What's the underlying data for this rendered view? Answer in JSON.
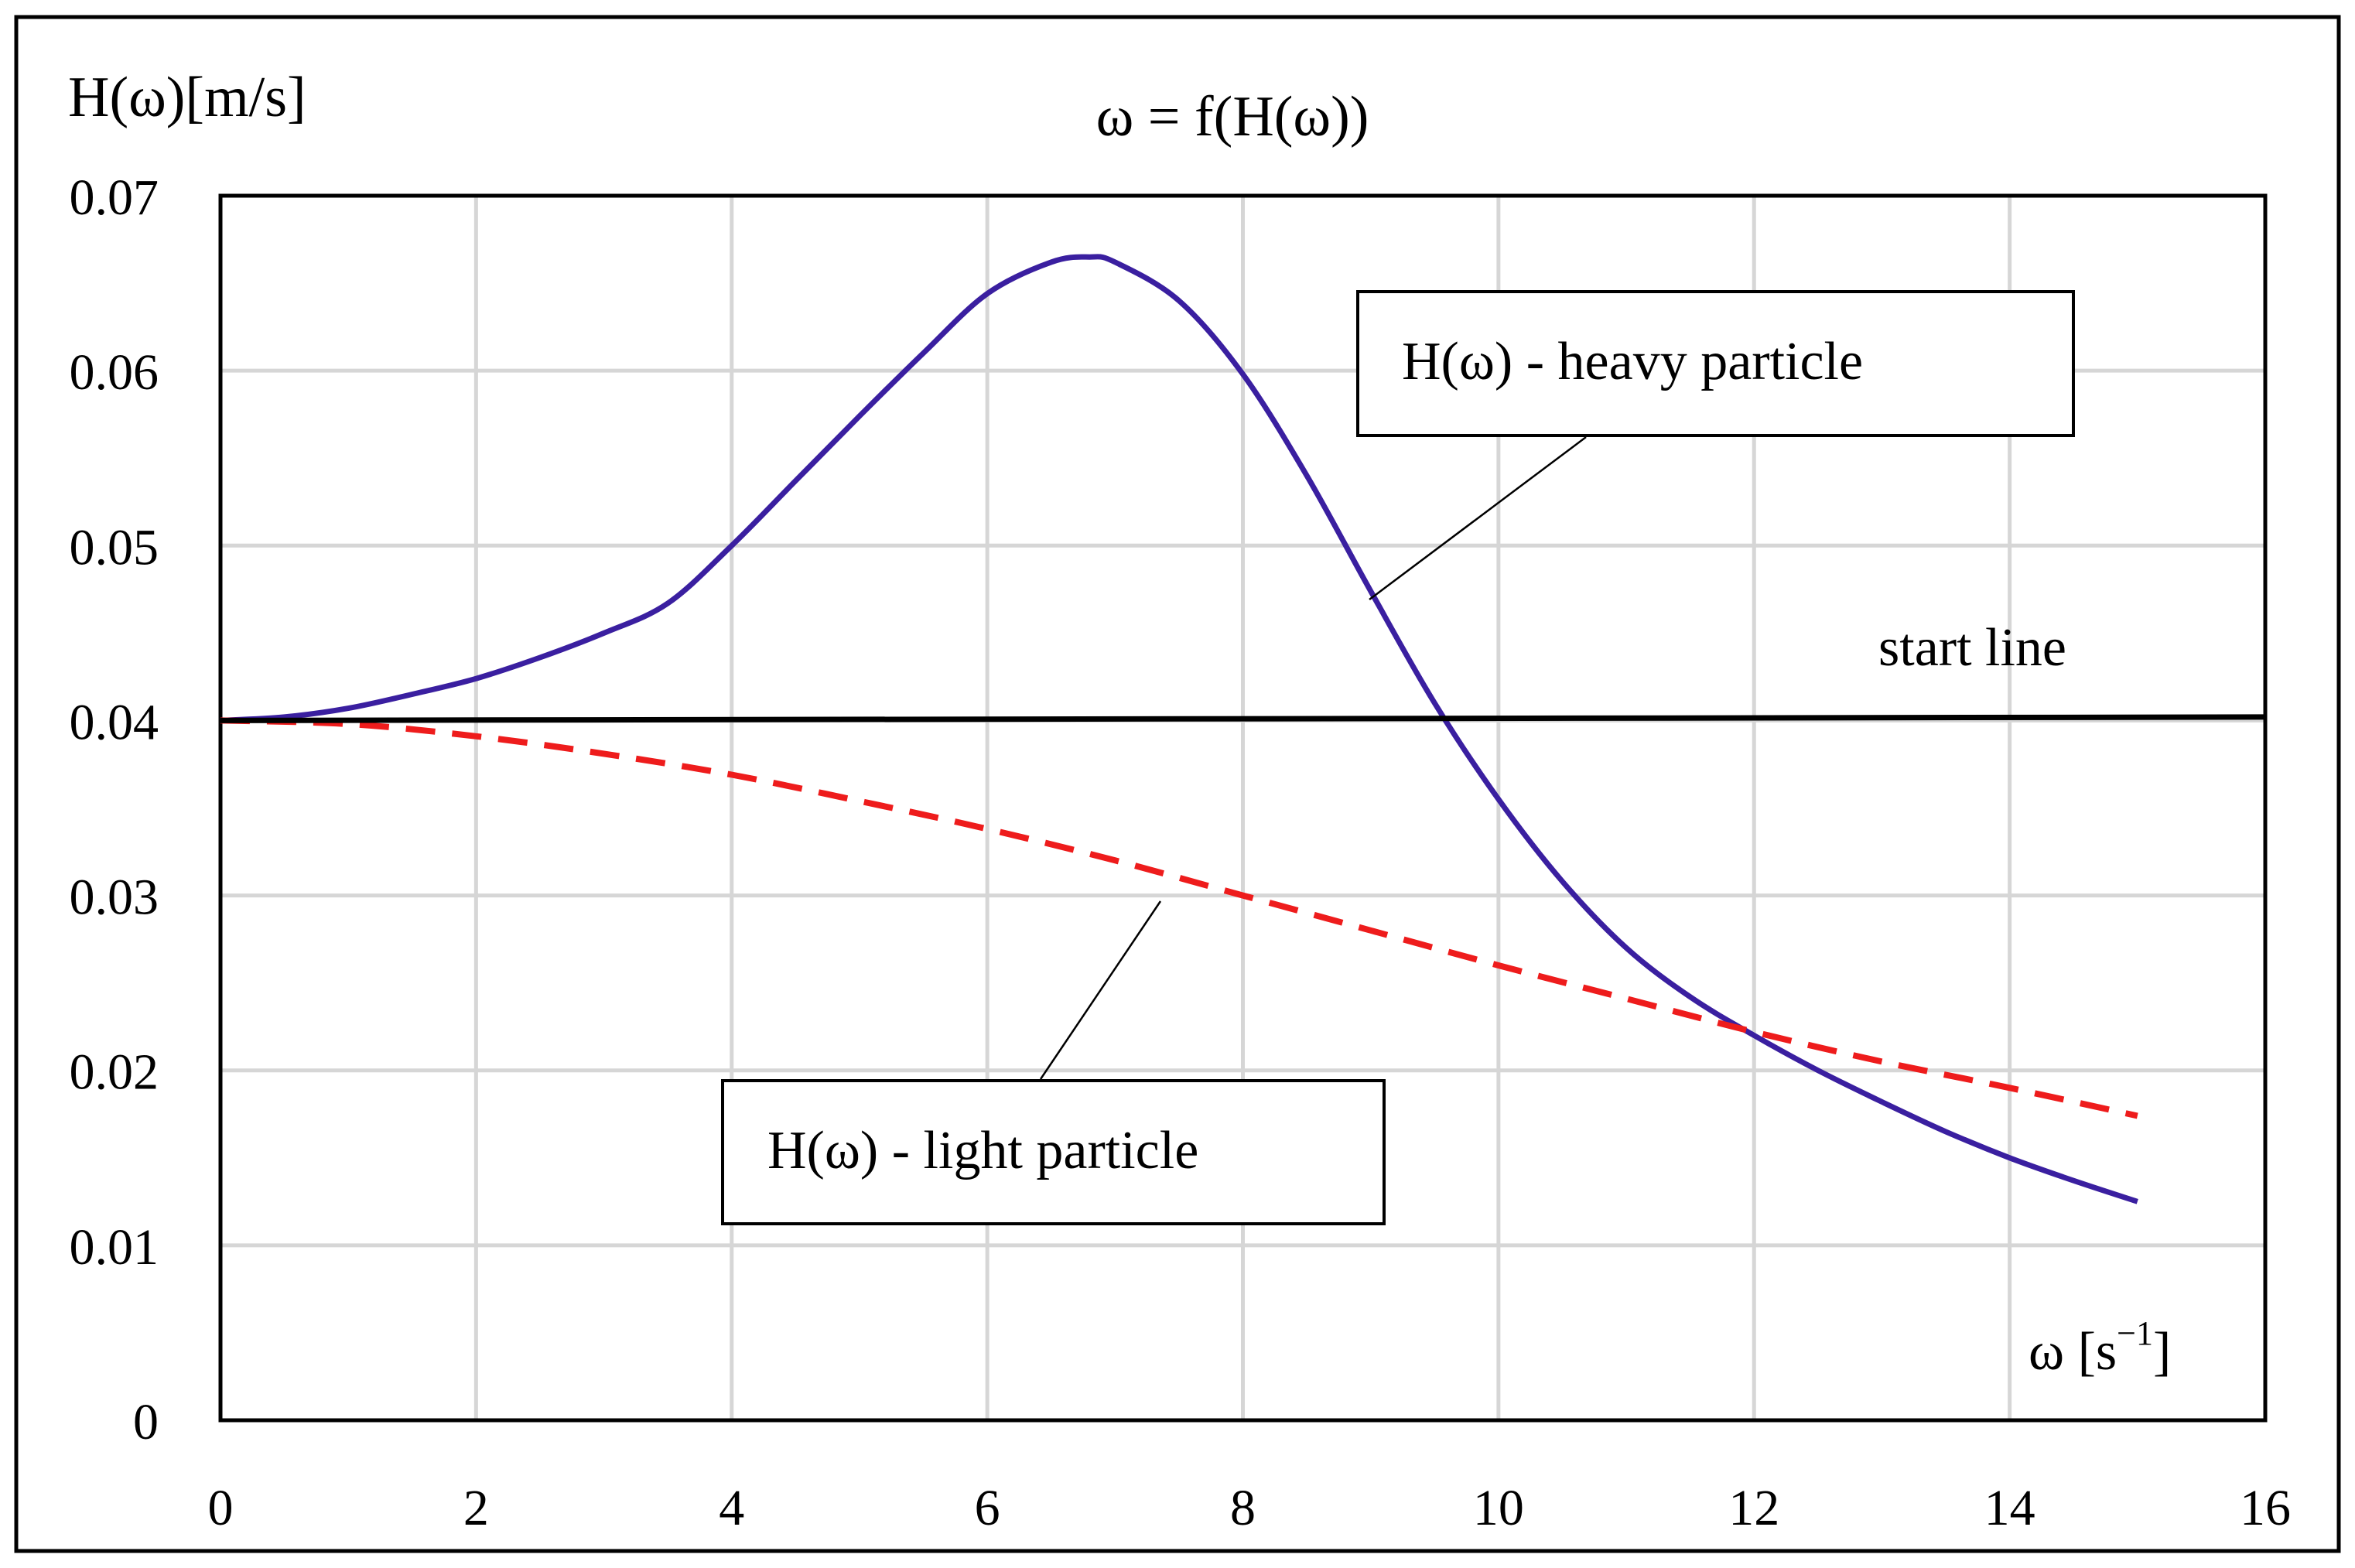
{
  "chart_data": {
    "type": "line",
    "title": "ω = f(H(ω))",
    "ylabel": "H(ω)[m/s]",
    "xlabel_base": "ω [s",
    "xlabel_sup": "−1",
    "xlabel_close": "]",
    "xlim": [
      0,
      16
    ],
    "ylim": [
      0,
      0.07
    ],
    "x_ticks": [
      0,
      2,
      4,
      6,
      8,
      10,
      12,
      14,
      16
    ],
    "x_tick_labels": [
      "0",
      "2",
      "4",
      "6",
      "8",
      "10",
      "12",
      "14",
      "16"
    ],
    "y_ticks": [
      0,
      0.01,
      0.02,
      0.03,
      0.04,
      0.05,
      0.06,
      0.07
    ],
    "y_tick_labels": [
      "0",
      "0.01",
      "0.02",
      "0.03",
      "0.04",
      "0.05",
      "0.06",
      "0.07"
    ],
    "grid": true,
    "series": [
      {
        "name": "H(ω) - heavy particle",
        "style": "solid",
        "color": "#3a1fa0",
        "x": [
          0,
          0.5,
          1,
          1.5,
          2,
          2.5,
          3,
          3.5,
          4,
          4.5,
          5,
          5.5,
          6,
          6.5,
          6.8,
          7,
          7.5,
          8,
          8.5,
          9,
          9.5,
          10,
          10.5,
          11,
          11.5,
          12,
          12.5,
          13,
          13.5,
          14,
          14.5,
          15
        ],
        "y": [
          0.04,
          0.0402,
          0.0407,
          0.0415,
          0.0424,
          0.0436,
          0.045,
          0.0467,
          0.05,
          0.0537,
          0.0574,
          0.061,
          0.0644,
          0.0662,
          0.0665,
          0.0662,
          0.064,
          0.0598,
          0.054,
          0.0474,
          0.041,
          0.0355,
          0.0308,
          0.027,
          0.0242,
          0.022,
          0.02,
          0.0182,
          0.0165,
          0.015,
          0.0137,
          0.0125
        ]
      },
      {
        "name": "H(ω) - light particle",
        "style": "dashed",
        "color": "#ee1c1c",
        "x": [
          0,
          1,
          2,
          3,
          4,
          5,
          6,
          7,
          8,
          9,
          10,
          11,
          12,
          13,
          14,
          15
        ],
        "y": [
          0.04,
          0.0398,
          0.0391,
          0.0381,
          0.0369,
          0.0354,
          0.0338,
          0.032,
          0.03,
          0.028,
          0.026,
          0.0241,
          0.0222,
          0.0205,
          0.019,
          0.0174
        ]
      },
      {
        "name": "start line",
        "style": "solid",
        "color": "#000000",
        "x": [
          0,
          16
        ],
        "y": [
          0.04,
          0.0402
        ]
      }
    ],
    "annotations": [
      {
        "text": "H(ω) - heavy particle",
        "boxed": true,
        "points_to": [
          9.0,
          0.047
        ]
      },
      {
        "text": "H(ω) - light particle",
        "boxed": true,
        "points_to": [
          7.5,
          0.031
        ]
      },
      {
        "text": "start line",
        "boxed": false
      }
    ]
  }
}
